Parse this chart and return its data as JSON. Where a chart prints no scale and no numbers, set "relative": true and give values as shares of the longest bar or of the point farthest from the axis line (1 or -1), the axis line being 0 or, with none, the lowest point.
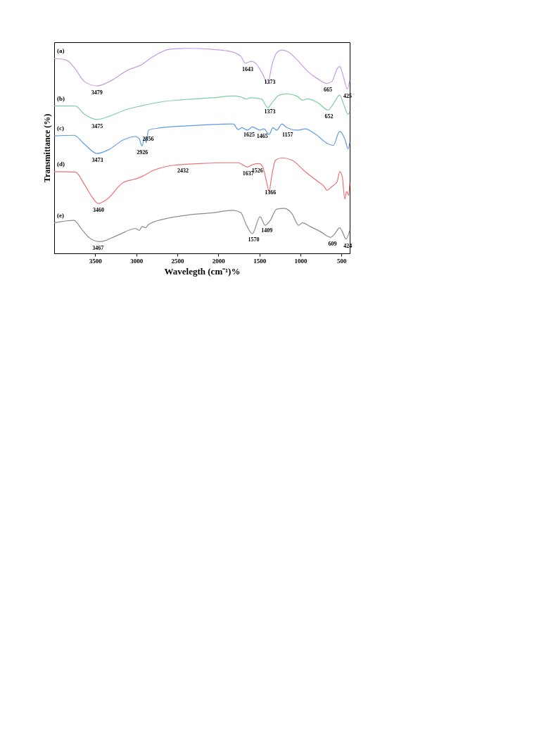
{
  "chart_data": {
    "type": "line",
    "relative": true,
    "xlabel": "Wavelegth (cm⁻¹)%",
    "ylabel": "Transmittance (%)",
    "xlim": [
      4000,
      400
    ],
    "xticks": [
      3500,
      3000,
      2500,
      2000,
      1500,
      1000,
      500
    ],
    "tick_labels": "x",
    "grid": false,
    "marker": "none",
    "line_style": "solid",
    "series": [
      {
        "name": "(a)",
        "color": "#c89ae6",
        "x": [
          4000,
          3853,
          3744,
          3634,
          3478,
          3322,
          3103,
          2946,
          2790,
          2602,
          2383,
          2071,
          1852,
          1726,
          1670,
          1601,
          1539,
          1461,
          1398,
          1351,
          1289,
          1226,
          1148,
          1038,
          913,
          788,
          679,
          616,
          553,
          522,
          491,
          428,
          400
        ],
        "values": [
          0.951,
          0.943,
          0.9,
          0.839,
          0.817,
          0.839,
          0.894,
          0.918,
          0.961,
          0.995,
          1.0,
          0.995,
          0.985,
          0.961,
          0.927,
          0.937,
          0.924,
          0.875,
          0.827,
          0.912,
          0.979,
          0.992,
          0.983,
          0.943,
          0.888,
          0.851,
          0.829,
          0.839,
          0.9,
          0.912,
          0.882,
          0.802,
          0.845
        ]
      },
      {
        "name": "(b)",
        "color": "#7fcf9e",
        "x": [
          4000,
          3744,
          3634,
          3478,
          3322,
          3103,
          2946,
          2696,
          2383,
          2071,
          1820,
          1726,
          1664,
          1601,
          1476,
          1398,
          1335,
          1257,
          1164,
          1038,
          976,
          913,
          788,
          663,
          600,
          522,
          475,
          419,
          400
        ],
        "values": [
          0.719,
          0.719,
          0.68,
          0.653,
          0.67,
          0.704,
          0.719,
          0.739,
          0.751,
          0.759,
          0.768,
          0.763,
          0.753,
          0.759,
          0.753,
          0.711,
          0.741,
          0.772,
          0.778,
          0.766,
          0.747,
          0.753,
          0.735,
          0.699,
          0.729,
          0.772,
          0.729,
          0.678,
          0.692
        ]
      },
      {
        "name": "(c)",
        "color": "#5b9bea",
        "x": [
          4000,
          3760,
          3634,
          3478,
          3322,
          3165,
          3009,
          2962,
          2931,
          2899,
          2878,
          2853,
          2696,
          2383,
          2071,
          1820,
          1758,
          1711,
          1648,
          1586,
          1492,
          1445,
          1382,
          1335,
          1289,
          1226,
          1164,
          1038,
          944,
          819,
          663,
          600,
          522,
          460,
          419,
          400
        ],
        "values": [
          0.573,
          0.576,
          0.534,
          0.487,
          0.509,
          0.552,
          0.57,
          0.558,
          0.524,
          0.564,
          0.54,
          0.601,
          0.613,
          0.622,
          0.629,
          0.631,
          0.604,
          0.613,
          0.601,
          0.617,
          0.601,
          0.607,
          0.58,
          0.613,
          0.601,
          0.631,
          0.613,
          0.601,
          0.607,
          0.582,
          0.534,
          0.527,
          0.595,
          0.558,
          0.509,
          0.54
        ]
      },
      {
        "name": "(d)",
        "color": "#f07070",
        "x": [
          4000,
          3744,
          3634,
          3541,
          3462,
          3353,
          3165,
          3009,
          2946,
          2790,
          2540,
          2227,
          1914,
          1758,
          1695,
          1648,
          1601,
          1508,
          1461,
          1414,
          1382,
          1351,
          1304,
          1226,
          1101,
          944,
          788,
          710,
          679,
          616,
          553,
          522,
          491,
          460,
          438,
          413,
          400
        ],
        "values": [
          0.399,
          0.397,
          0.338,
          0.277,
          0.243,
          0.265,
          0.344,
          0.363,
          0.372,
          0.405,
          0.43,
          0.438,
          0.442,
          0.442,
          0.43,
          0.421,
          0.43,
          0.438,
          0.424,
          0.35,
          0.302,
          0.375,
          0.454,
          0.466,
          0.454,
          0.399,
          0.35,
          0.326,
          0.308,
          0.326,
          0.35,
          0.399,
          0.375,
          0.265,
          0.302,
          0.283,
          0.344
        ]
      },
      {
        "name": "(e)",
        "color": "#8c8c8c",
        "x": [
          4000,
          3760,
          3666,
          3572,
          3447,
          3228,
          3009,
          2962,
          2931,
          2884,
          2853,
          2665,
          2383,
          2071,
          1820,
          1726,
          1664,
          1586,
          1492,
          1430,
          1367,
          1289,
          1195,
          1101,
          1023,
          976,
          882,
          757,
          632,
          585,
          522,
          491,
          444,
          400
        ],
        "values": [
          0.149,
          0.161,
          0.118,
          0.076,
          0.057,
          0.088,
          0.121,
          0.112,
          0.131,
          0.125,
          0.14,
          0.167,
          0.186,
          0.198,
          0.21,
          0.198,
          0.143,
          0.096,
          0.179,
          0.137,
          0.161,
          0.216,
          0.219,
          0.192,
          0.137,
          0.149,
          0.131,
          0.106,
          0.078,
          0.094,
          0.125,
          0.106,
          0.07,
          0.112
        ]
      }
    ],
    "annotations": [
      {
        "text": "3479",
        "x": 3479,
        "y": 0.817
      },
      {
        "text": "1643",
        "x": 1643,
        "y": 0.93
      },
      {
        "text": "1373",
        "x": 1373,
        "y": 0.87
      },
      {
        "text": "665",
        "x": 665,
        "y": 0.83
      },
      {
        "text": "425",
        "x": 425,
        "y": 0.8
      },
      {
        "text": "3475",
        "x": 3475,
        "y": 0.653
      },
      {
        "text": "1373",
        "x": 1373,
        "y": 0.725
      },
      {
        "text": "652",
        "x": 652,
        "y": 0.7
      },
      {
        "text": "2926",
        "x": 2926,
        "y": 0.524
      },
      {
        "text": "2856",
        "x": 2856,
        "y": 0.59
      },
      {
        "text": "3473",
        "x": 3473,
        "y": 0.487
      },
      {
        "text": "1625",
        "x": 1625,
        "y": 0.61
      },
      {
        "text": "1465",
        "x": 1465,
        "y": 0.604
      },
      {
        "text": "1157",
        "x": 1157,
        "y": 0.612
      },
      {
        "text": "2432",
        "x": 2432,
        "y": 0.437
      },
      {
        "text": "1637",
        "x": 1637,
        "y": 0.424
      },
      {
        "text": "1526",
        "x": 1526,
        "y": 0.436
      },
      {
        "text": "1366",
        "x": 1366,
        "y": 0.33
      },
      {
        "text": "3460",
        "x": 3460,
        "y": 0.243
      },
      {
        "text": "3467",
        "x": 3467,
        "y": 0.058
      },
      {
        "text": "1570",
        "x": 1570,
        "y": 0.1
      },
      {
        "text": "1409",
        "x": 1409,
        "y": 0.145
      },
      {
        "text": "609",
        "x": 609,
        "y": 0.08
      },
      {
        "text": "424",
        "x": 424,
        "y": 0.07
      }
    ]
  }
}
